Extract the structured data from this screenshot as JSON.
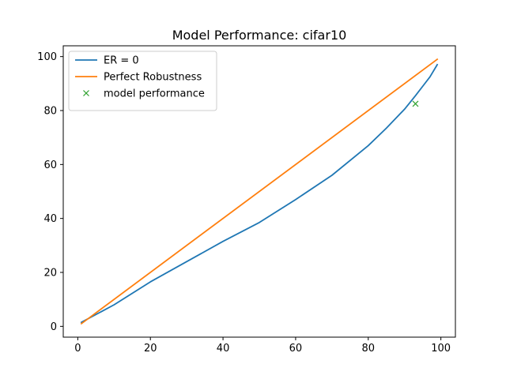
{
  "chart_data": {
    "type": "line",
    "title": "Model Performance: cifar10",
    "xlabel": "",
    "ylabel": "",
    "xlim": [
      -4,
      104
    ],
    "ylim": [
      -4,
      104
    ],
    "xticks": [
      0,
      20,
      40,
      60,
      80,
      100
    ],
    "yticks": [
      0,
      20,
      40,
      60,
      80,
      100
    ],
    "grid": false,
    "legend": {
      "placement": "top-left"
    },
    "series": [
      {
        "name": "ER = 0",
        "kind": "line",
        "color": "#1f77b4",
        "x": [
          1,
          10,
          20,
          30,
          40,
          50,
          60,
          70,
          80,
          85,
          90,
          93,
          95,
          97,
          99
        ],
        "y": [
          1.5,
          8,
          16.5,
          24,
          31.5,
          38.5,
          47,
          56,
          67,
          73.5,
          80.5,
          85.5,
          89,
          92.5,
          97
        ]
      },
      {
        "name": "Perfect Robustness",
        "kind": "line",
        "color": "#ff7f0e",
        "x": [
          1,
          99
        ],
        "y": [
          1,
          99
        ]
      },
      {
        "name": "model performance",
        "kind": "marker",
        "marker": "x",
        "color": "#2ca02c",
        "x": [
          93
        ],
        "y": [
          82.5
        ]
      }
    ]
  }
}
